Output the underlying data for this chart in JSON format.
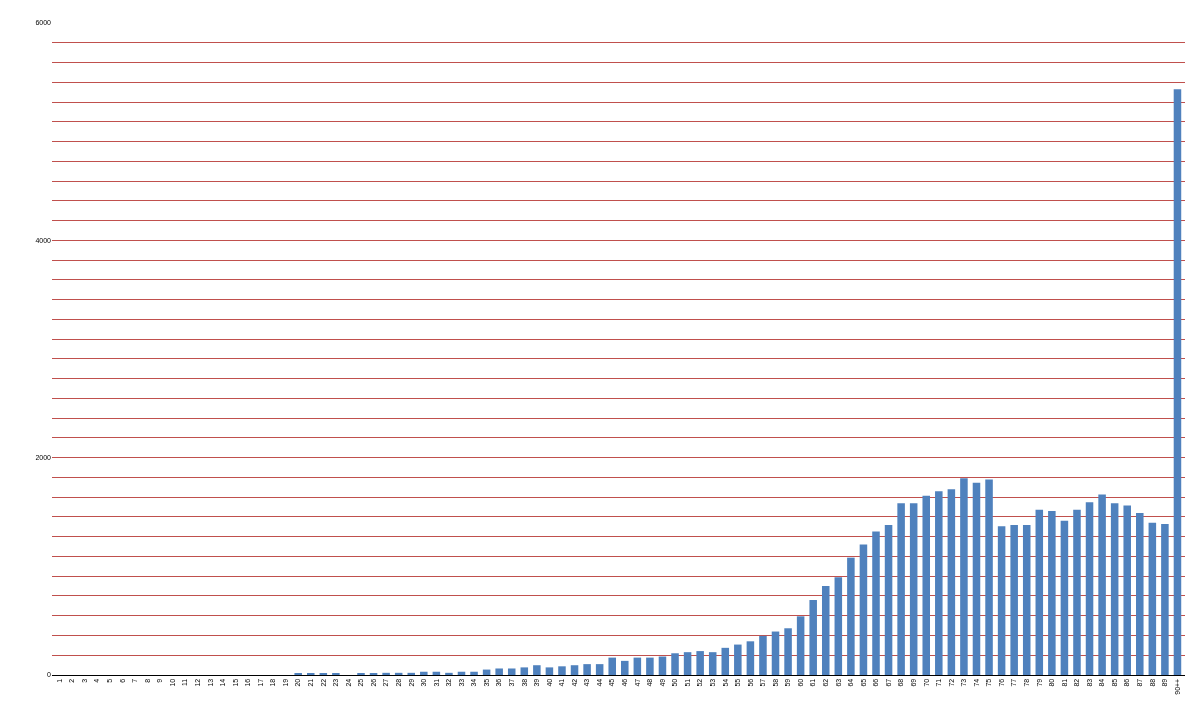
{
  "chart_data": {
    "type": "bar",
    "categories": [
      "1",
      "2",
      "3",
      "4",
      "5",
      "6",
      "7",
      "8",
      "9",
      "10",
      "11",
      "12",
      "13",
      "14",
      "15",
      "16",
      "17",
      "18",
      "19",
      "20",
      "21",
      "22",
      "23",
      "24",
      "25",
      "26",
      "27",
      "28",
      "29",
      "30",
      "31",
      "32",
      "33",
      "34",
      "35",
      "36",
      "37",
      "38",
      "39",
      "40",
      "41",
      "42",
      "43",
      "44",
      "45",
      "46",
      "47",
      "48",
      "49",
      "50",
      "51",
      "52",
      "53",
      "54",
      "55",
      "56",
      "57",
      "58",
      "59",
      "60",
      "61",
      "62",
      "63",
      "64",
      "65",
      "66",
      "67",
      "68",
      "69",
      "70",
      "71",
      "72",
      "73",
      "74",
      "75",
      "76",
      "77",
      "78",
      "79",
      "80",
      "81",
      "82",
      "83",
      "84",
      "85",
      "86",
      "87",
      "88",
      "89",
      "90++"
    ],
    "values": [
      0,
      0,
      0,
      0,
      0,
      0,
      0,
      0,
      0,
      0,
      0,
      0,
      0,
      0,
      0,
      0,
      0,
      0,
      0,
      10,
      10,
      10,
      10,
      0,
      10,
      10,
      20,
      20,
      20,
      30,
      30,
      20,
      30,
      30,
      50,
      60,
      60,
      70,
      90,
      70,
      80,
      90,
      100,
      100,
      160,
      130,
      160,
      160,
      170,
      200,
      210,
      220,
      210,
      250,
      280,
      310,
      360,
      400,
      430,
      540,
      690,
      820,
      900,
      1080,
      1200,
      1320,
      1380,
      1580,
      1580,
      1650,
      1690,
      1710,
      1810,
      1770,
      1800,
      1370,
      1380,
      1380,
      1520,
      1510,
      1420,
      1520,
      1590,
      1660,
      1580,
      1560,
      1490,
      1400,
      1390,
      5390
    ],
    "color": "#4f81bd",
    "ylim": [
      0,
      6000
    ],
    "yticks": [
      0,
      {
        "value": 181.8,
        "label": null
      },
      {
        "value": 363.6,
        "label": null
      },
      {
        "value": 545.5,
        "label": null
      },
      {
        "value": 727.3,
        "label": null
      },
      {
        "value": 909.1,
        "label": null
      },
      {
        "value": 1090.9,
        "label": null
      },
      {
        "value": 1272.7,
        "label": null
      },
      {
        "value": 1454.5,
        "label": null
      },
      {
        "value": 1636.4,
        "label": null
      },
      {
        "value": 1818.2,
        "label": null
      },
      2000,
      {
        "value": 2181.8,
        "label": null
      },
      {
        "value": 2363.6,
        "label": null
      },
      {
        "value": 2545.5,
        "label": null
      },
      {
        "value": 2727.3,
        "label": null
      },
      {
        "value": 2909.1,
        "label": null
      },
      {
        "value": 3090.9,
        "label": null
      },
      {
        "value": 3272.7,
        "label": null
      },
      {
        "value": 3454.5,
        "label": null
      },
      {
        "value": 3636.4,
        "label": null
      },
      {
        "value": 3818.2,
        "label": null
      },
      4000,
      {
        "value": 4181.8,
        "label": null
      },
      {
        "value": 4363.6,
        "label": null
      },
      {
        "value": 4545.5,
        "label": null
      },
      {
        "value": 4727.3,
        "label": null
      },
      {
        "value": 4909.1,
        "label": null
      },
      {
        "value": 5090.9,
        "label": null
      },
      {
        "value": 5272.7,
        "label": null
      },
      {
        "value": 5454.5,
        "label": null
      },
      {
        "value": 5636.4,
        "label": null
      },
      {
        "value": 5818.2,
        "label": null
      },
      6000
    ],
    "grid": "y"
  }
}
